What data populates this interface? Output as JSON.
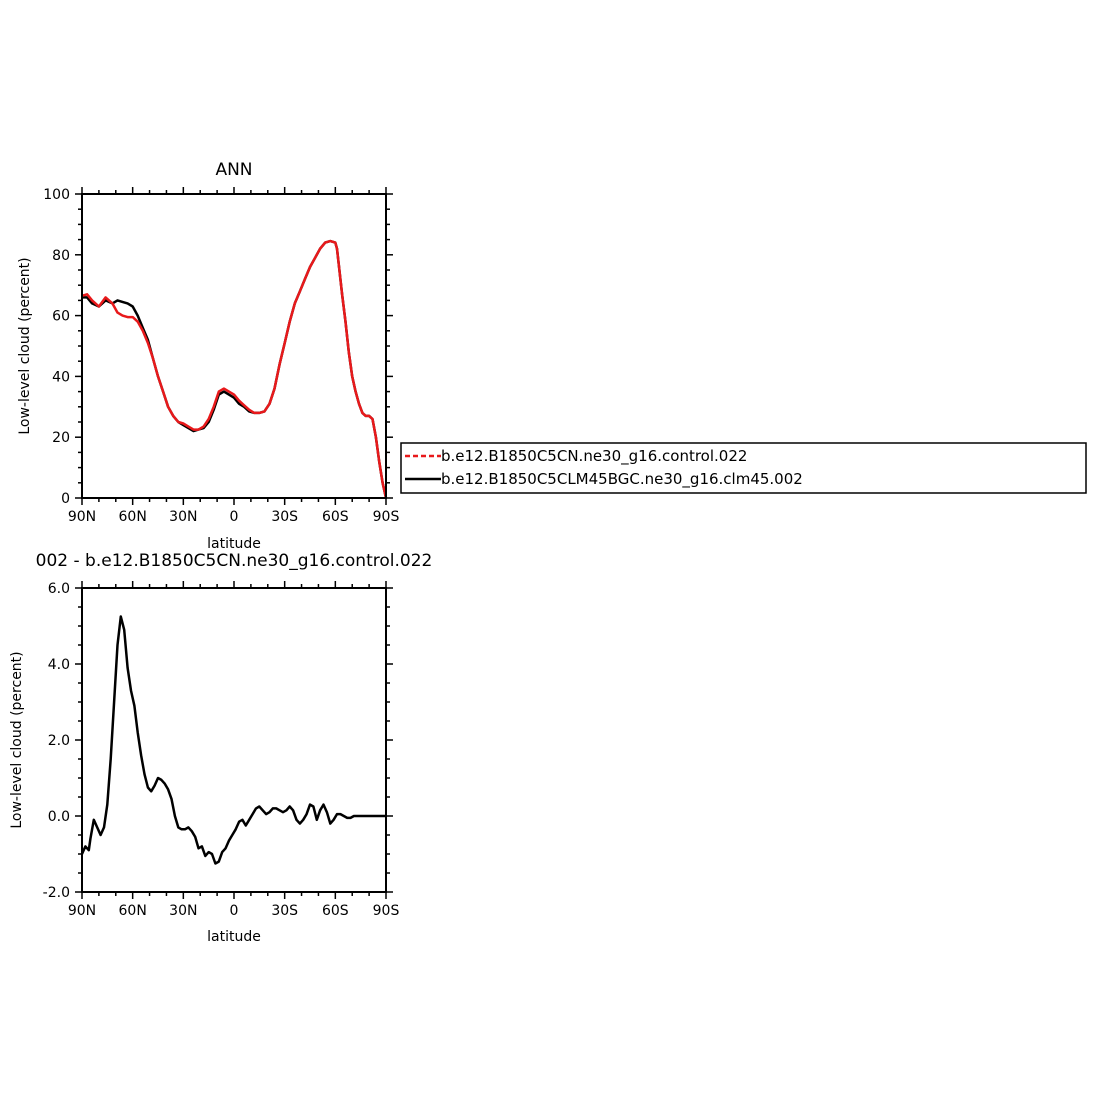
{
  "chart_data": [
    {
      "type": "line",
      "title": "ANN",
      "xlabel": "latitude",
      "ylabel": "Low-level cloud (percent)",
      "xlim": [
        90,
        -90
      ],
      "ylim": [
        0,
        100
      ],
      "x_ticks": [
        {
          "value": 90,
          "label": "90N"
        },
        {
          "value": 60,
          "label": "60N"
        },
        {
          "value": 30,
          "label": "30N"
        },
        {
          "value": 0,
          "label": "0"
        },
        {
          "value": -30,
          "label": "30S"
        },
        {
          "value": -60,
          "label": "60S"
        },
        {
          "value": -90,
          "label": "90S"
        }
      ],
      "y_ticks": [
        {
          "value": 0,
          "label": "0"
        },
        {
          "value": 20,
          "label": "20"
        },
        {
          "value": 40,
          "label": "40"
        },
        {
          "value": 60,
          "label": "60"
        },
        {
          "value": 80,
          "label": "80"
        },
        {
          "value": 100,
          "label": "100"
        }
      ],
      "grid": false,
      "legend": {
        "placement": "right",
        "entries": [
          {
            "name": "b.e12.B1850C5CN.ne30_g16.control.022",
            "color": "#e8191b",
            "dash": "dashed"
          },
          {
            "name": "b.e12.B1850C5CLM45BGC.ne30_g16.clm45.002",
            "color": "#000000",
            "dash": "solid"
          }
        ]
      },
      "series": [
        {
          "name": "b.e12.B1850C5CLM45BGC.ne30_g16.clm45.002",
          "color": "#000000",
          "x": [
            90,
            87,
            84,
            80,
            76,
            72,
            69,
            66,
            63,
            60,
            57,
            54,
            51,
            48,
            45,
            42,
            39,
            36,
            33,
            30,
            27,
            24,
            21,
            18,
            15,
            12,
            9,
            6,
            3,
            0,
            -3,
            -6,
            -9,
            -12,
            -15,
            -18,
            -21,
            -24,
            -27,
            -30,
            -33,
            -36,
            -39,
            -42,
            -45,
            -48,
            -51,
            -54,
            -57,
            -60,
            -61,
            -62,
            -64,
            -66,
            -68,
            -70,
            -72,
            -74,
            -76,
            -78,
            -80,
            -82,
            -84,
            -86,
            -88,
            -90
          ],
          "y": [
            66,
            66,
            64,
            63,
            65,
            64,
            65,
            64.5,
            64,
            63,
            60,
            56,
            52,
            46,
            40,
            35,
            30,
            27,
            25,
            24,
            23,
            22,
            22.5,
            23,
            25,
            29,
            34,
            35,
            34,
            33,
            31,
            30,
            28.5,
            28,
            28,
            28.5,
            31,
            36,
            44,
            51,
            58,
            64,
            68,
            72,
            76,
            79,
            82,
            84,
            84.5,
            84,
            82,
            77,
            67,
            58,
            48,
            40,
            35,
            31,
            28,
            27,
            27,
            26,
            20,
            12,
            5,
            0
          ]
        },
        {
          "name": "b.e12.B1850C5CN.ne30_g16.control.022",
          "color": "#e8191b",
          "x": [
            90,
            87,
            84,
            80,
            76,
            72,
            69,
            66,
            63,
            60,
            57,
            54,
            51,
            48,
            45,
            42,
            39,
            36,
            33,
            30,
            27,
            24,
            21,
            18,
            15,
            12,
            9,
            6,
            3,
            0,
            -3,
            -6,
            -9,
            -12,
            -15,
            -18,
            -21,
            -24,
            -27,
            -30,
            -33,
            -36,
            -39,
            -42,
            -45,
            -48,
            -51,
            -54,
            -57,
            -60,
            -61,
            -62,
            -64,
            -66,
            -68,
            -70,
            -72,
            -74,
            -76,
            -78,
            -80,
            -82,
            -84,
            -86,
            -88,
            -90
          ],
          "y": [
            66.5,
            67,
            65,
            63,
            66,
            64,
            61,
            60,
            59.5,
            59.5,
            58,
            55,
            51,
            46,
            40,
            35,
            30,
            27,
            25,
            24.5,
            23.5,
            22.5,
            22.5,
            23.5,
            26,
            30,
            35,
            36,
            35,
            34,
            32,
            30.5,
            29,
            28,
            28,
            28.5,
            31,
            36,
            44,
            51,
            58,
            64,
            68,
            72,
            76,
            79,
            82,
            84,
            84.5,
            84,
            82,
            77,
            67,
            58,
            48,
            40,
            35,
            31,
            28,
            27,
            27,
            26,
            20,
            12,
            5,
            0
          ]
        }
      ]
    },
    {
      "type": "line",
      "title": "002 - b.e12.B1850C5CN.ne30_g16.control.022",
      "xlabel": "latitude",
      "ylabel": "Low-level cloud (percent)",
      "xlim": [
        90,
        -90
      ],
      "ylim": [
        -2,
        6
      ],
      "x_ticks": [
        {
          "value": 90,
          "label": "90N"
        },
        {
          "value": 60,
          "label": "60N"
        },
        {
          "value": 30,
          "label": "30N"
        },
        {
          "value": 0,
          "label": "0"
        },
        {
          "value": -30,
          "label": "30S"
        },
        {
          "value": -60,
          "label": "60S"
        },
        {
          "value": -90,
          "label": "90S"
        }
      ],
      "y_ticks": [
        {
          "value": -2,
          "label": "-2.0"
        },
        {
          "value": 0,
          "label": "0.0"
        },
        {
          "value": 2,
          "label": "2.0"
        },
        {
          "value": 4,
          "label": "4.0"
        },
        {
          "value": 6,
          "label": "6.0"
        }
      ],
      "grid": false,
      "series": [
        {
          "color": "#000000",
          "x": [
            90,
            88,
            86,
            85,
            83,
            81,
            79,
            77,
            75,
            73,
            71,
            69,
            67,
            65,
            63,
            61,
            59,
            57,
            55,
            53,
            51,
            49,
            47,
            45,
            43,
            41,
            39,
            37,
            35,
            33,
            31,
            29,
            27,
            25,
            23,
            21,
            19,
            17,
            15,
            13,
            11,
            9,
            7,
            5,
            3,
            1,
            -1,
            -3,
            -5,
            -7,
            -9,
            -11,
            -13,
            -15,
            -17,
            -19,
            -21,
            -23,
            -25,
            -27,
            -29,
            -31,
            -33,
            -35,
            -37,
            -39,
            -41,
            -43,
            -45,
            -47,
            -49,
            -51,
            -53,
            -55,
            -57,
            -59,
            -61,
            -63,
            -65,
            -67,
            -69,
            -71,
            -73,
            -75,
            -77,
            -79,
            -81,
            -83,
            -85,
            -87,
            -89,
            -90
          ],
          "y": [
            -1.0,
            -0.8,
            -0.9,
            -0.6,
            -0.1,
            -0.3,
            -0.5,
            -0.3,
            0.3,
            1.5,
            3.0,
            4.5,
            5.25,
            4.9,
            3.9,
            3.3,
            2.9,
            2.2,
            1.6,
            1.1,
            0.75,
            0.65,
            0.8,
            1.0,
            0.95,
            0.85,
            0.7,
            0.45,
            0.0,
            -0.3,
            -0.35,
            -0.35,
            -0.3,
            -0.4,
            -0.55,
            -0.85,
            -0.8,
            -1.05,
            -0.95,
            -1.0,
            -1.25,
            -1.2,
            -0.95,
            -0.85,
            -0.65,
            -0.5,
            -0.35,
            -0.15,
            -0.1,
            -0.25,
            -0.1,
            0.05,
            0.2,
            0.25,
            0.15,
            0.05,
            0.1,
            0.2,
            0.2,
            0.15,
            0.1,
            0.15,
            0.25,
            0.15,
            -0.1,
            -0.2,
            -0.1,
            0.05,
            0.3,
            0.25,
            -0.1,
            0.15,
            0.3,
            0.1,
            -0.2,
            -0.1,
            0.05,
            0.05,
            0.0,
            -0.05,
            -0.05,
            0.0,
            0.0,
            0.0,
            0.0,
            0.0,
            0.0,
            0.0,
            0.0,
            0.0,
            0.0,
            0.0
          ]
        }
      ]
    }
  ]
}
